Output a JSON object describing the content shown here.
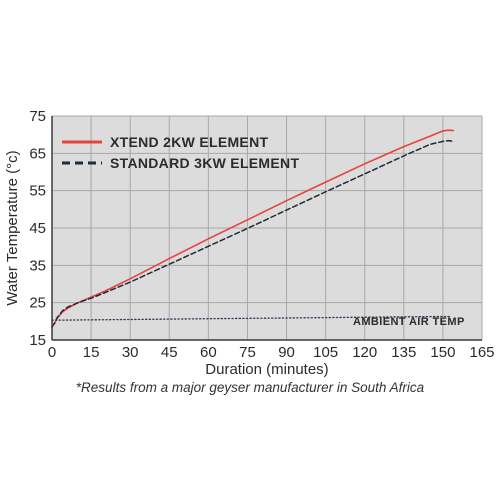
{
  "chart_data": {
    "type": "line",
    "title": "",
    "xlabel": "Duration (minutes)",
    "ylabel": "Water Temperature (°c)",
    "xlim": [
      0,
      165
    ],
    "ylim": [
      15,
      75
    ],
    "xticks": [
      0,
      15,
      30,
      45,
      60,
      75,
      90,
      105,
      120,
      135,
      150,
      165
    ],
    "yticks": [
      15,
      25,
      35,
      45,
      55,
      65,
      75
    ],
    "grid": true,
    "legend_position": "top-left",
    "series": [
      {
        "name": "XTEND 2KW ELEMENT",
        "color": "#e8423c",
        "style": "solid",
        "points": [
          [
            0,
            19
          ],
          [
            1,
            19.5
          ],
          [
            2,
            20.8
          ],
          [
            4,
            22.5
          ],
          [
            6,
            23.5
          ],
          [
            10,
            25
          ],
          [
            15,
            26.5
          ],
          [
            20,
            28
          ],
          [
            30,
            31.4
          ],
          [
            45,
            36.8
          ],
          [
            60,
            42.1
          ],
          [
            75,
            47.2
          ],
          [
            90,
            52.3
          ],
          [
            105,
            57.3
          ],
          [
            120,
            62.2
          ],
          [
            135,
            66.8
          ],
          [
            145,
            69.6
          ],
          [
            150,
            71
          ],
          [
            152,
            71.2
          ],
          [
            154,
            71.1
          ]
        ]
      },
      {
        "name": "STANDARD 3KW ELEMENT",
        "color": "#1f2a3a",
        "style": "dashed",
        "points": [
          [
            0,
            18.5
          ],
          [
            1,
            19.5
          ],
          [
            2,
            21
          ],
          [
            4,
            22.8
          ],
          [
            6,
            23.8
          ],
          [
            10,
            25
          ],
          [
            15,
            26.2
          ],
          [
            20,
            27.6
          ],
          [
            30,
            30.5
          ],
          [
            45,
            35.3
          ],
          [
            60,
            40.1
          ],
          [
            75,
            44.9
          ],
          [
            90,
            49.8
          ],
          [
            105,
            54.7
          ],
          [
            120,
            59.5
          ],
          [
            135,
            64.3
          ],
          [
            145,
            67.4
          ],
          [
            150,
            68.2
          ],
          [
            152,
            68.4
          ],
          [
            154,
            68.2
          ]
        ]
      },
      {
        "name": "AMBIENT AIR TEMP",
        "color": "#2b3a55",
        "style": "dotted",
        "points": [
          [
            0,
            20.3
          ],
          [
            30,
            20.5
          ],
          [
            60,
            20.7
          ],
          [
            90,
            20.9
          ],
          [
            120,
            21.1
          ],
          [
            150,
            21.3
          ],
          [
            153,
            21.3
          ]
        ]
      }
    ],
    "annotations": [
      "AMBIENT AIR TEMP"
    ]
  },
  "footnote": "*Results from a major geyser manufacturer in South Africa"
}
